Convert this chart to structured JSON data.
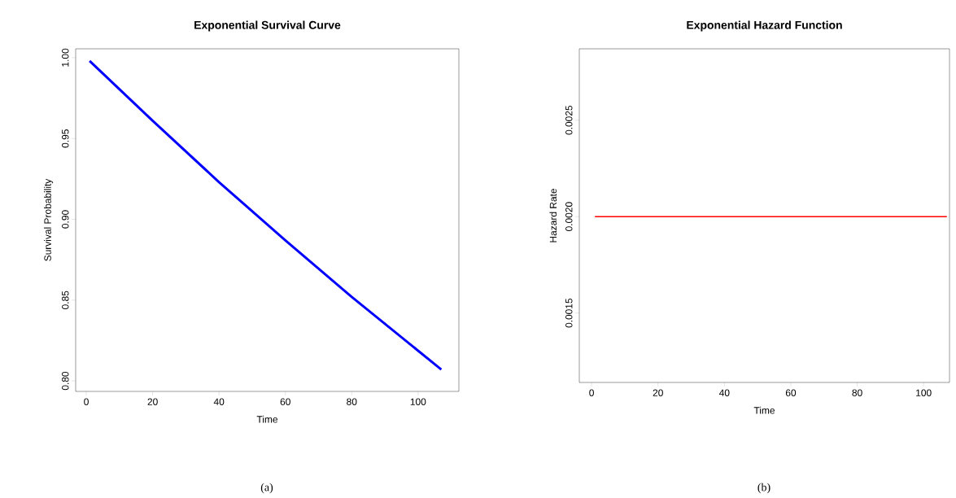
{
  "chart_data": [
    {
      "type": "line",
      "title": "Exponential Survival Curve",
      "xlabel": "Time",
      "ylabel": "Survival Probability",
      "x": [
        1,
        20,
        40,
        60,
        80,
        107
      ],
      "values": [
        0.998,
        0.961,
        0.923,
        0.887,
        0.852,
        0.807
      ],
      "color": "#0000ff",
      "xlim": [
        -3.2,
        112.3
      ],
      "ylim": [
        0.7935,
        1.0055
      ],
      "xticks": [
        0,
        20,
        40,
        60,
        80,
        100
      ],
      "yticks": [
        {
          "value": 0.8,
          "label": "0.80"
        },
        {
          "value": 0.85,
          "label": "0.85"
        },
        {
          "value": 0.9,
          "label": "0.90"
        },
        {
          "value": 0.95,
          "label": "0.95"
        },
        {
          "value": 1.0,
          "label": "1.00"
        }
      ],
      "annotations": [
        "(a)"
      ]
    },
    {
      "type": "line",
      "title": "Exponential Hazard Function",
      "xlabel": "Time",
      "ylabel": "Hazard Rate",
      "x": [
        1,
        107
      ],
      "values": [
        0.002,
        0.002
      ],
      "color": "#ff0000",
      "xlim": [
        -3.7,
        107.8
      ],
      "ylim": [
        0.00114,
        0.00287
      ],
      "xticks": [
        0,
        20,
        40,
        60,
        80,
        100
      ],
      "yticks": [
        {
          "value": 0.0015,
          "label": "0.0015"
        },
        {
          "value": 0.002,
          "label": "0.0020"
        },
        {
          "value": 0.0025,
          "label": "0.0025"
        }
      ],
      "annotations": [
        "(b)"
      ]
    }
  ]
}
